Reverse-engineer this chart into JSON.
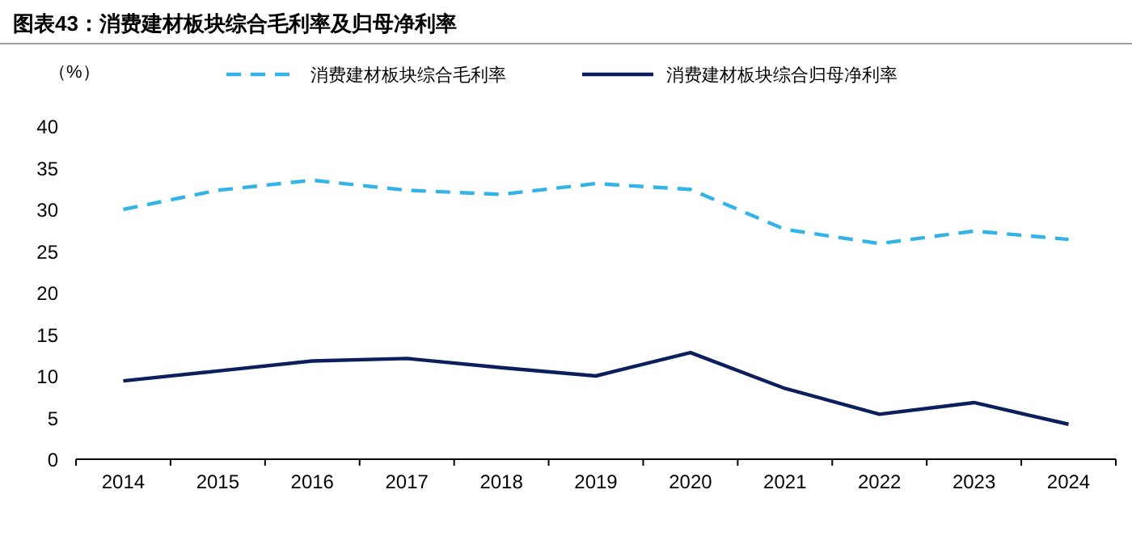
{
  "chart_data": {
    "type": "line",
    "title": "图表43：消费建材板块综合毛利率及归母净利率",
    "ylabel": "（%）",
    "categories": [
      "2014",
      "2015",
      "2016",
      "2017",
      "2018",
      "2019",
      "2020",
      "2021",
      "2022",
      "2023",
      "2024"
    ],
    "series": [
      {
        "name": "消费建材板块综合毛利率",
        "color": "#33b3e6",
        "line_style": "dashed",
        "values": [
          30.0,
          32.3,
          33.5,
          32.3,
          31.8,
          33.1,
          32.4,
          27.6,
          25.9,
          27.4,
          26.4
        ]
      },
      {
        "name": "消费建材板块综合归母净利率",
        "color": "#0b1f5c",
        "line_style": "solid",
        "values": [
          9.4,
          10.6,
          11.8,
          12.1,
          11.0,
          10.0,
          12.8,
          8.5,
          5.4,
          6.8,
          4.2
        ]
      }
    ],
    "ylim": [
      0,
      40
    ],
    "yticks": [
      0,
      5,
      10,
      15,
      20,
      25,
      30,
      35,
      40
    ],
    "legend": "top"
  }
}
